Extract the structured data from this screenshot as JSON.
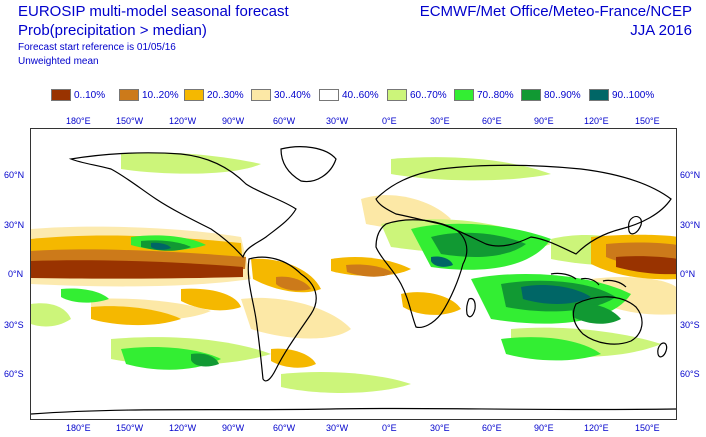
{
  "header": {
    "title_line1": "EUROSIP multi-model seasonal forecast",
    "title_line2": "Prob(precipitation > median)",
    "reference": "Forecast start reference is 01/05/16",
    "weighting": "Unweighted mean",
    "centres": "ECMWF/Met Office/Meteo-France/NCEP",
    "season": "JJA 2016"
  },
  "legend": [
    {
      "label": "0..10%",
      "color": "#993300"
    },
    {
      "label": "10..20%",
      "color": "#cc7a1a"
    },
    {
      "label": "20..30%",
      "color": "#f5b800"
    },
    {
      "label": "30..40%",
      "color": "#fce8a6"
    },
    {
      "label": "40..60%",
      "color": "#ffffff"
    },
    {
      "label": "60..70%",
      "color": "#ccf57a"
    },
    {
      "label": "70..80%",
      "color": "#33ee33"
    },
    {
      "label": "80..90%",
      "color": "#119933"
    },
    {
      "label": "90..100%",
      "color": "#006666"
    }
  ],
  "axes": {
    "lon_labels": [
      "180°E",
      "150°W",
      "120°W",
      "90°W",
      "60°W",
      "30°W",
      "0°E",
      "30°E",
      "60°E",
      "90°E",
      "120°E",
      "150°E"
    ],
    "lat_labels": [
      "60°N",
      "30°N",
      "0°N",
      "30°S",
      "60°S"
    ]
  }
}
